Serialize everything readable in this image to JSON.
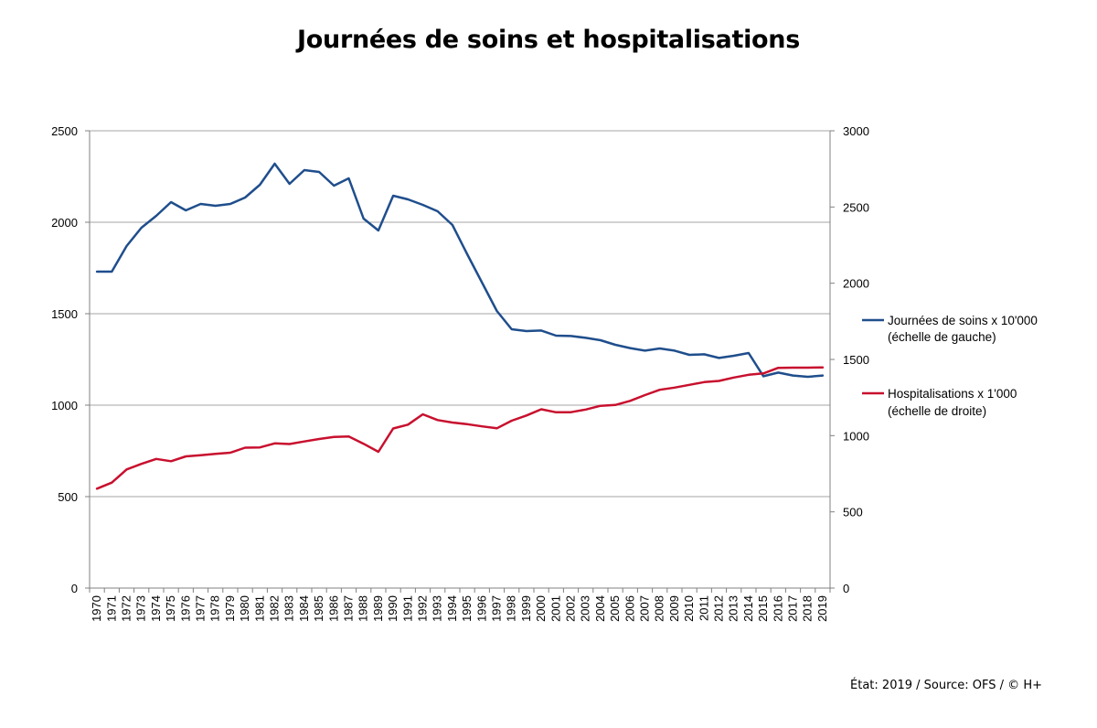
{
  "page": {
    "title": "Journées de soins et hospitalisations",
    "footer": "État: 2019 / Source: OFS / © H+"
  },
  "colors": {
    "series_blue": "#1f4e8c",
    "series_red": "#c8102e",
    "grid": "#a6a6a6",
    "axis": "#808080"
  },
  "chart_data": {
    "type": "line",
    "title": "Journées de soins et hospitalisations",
    "x": [
      "1970",
      "1971",
      "1972",
      "1973",
      "1974",
      "1975",
      "1976",
      "1977",
      "1978",
      "1979",
      "1980",
      "1981",
      "1982",
      "1983",
      "1984",
      "1985",
      "1986",
      "1987",
      "1988",
      "1989",
      "1990",
      "1991",
      "1992",
      "1993",
      "1994",
      "1995",
      "1996",
      "1997",
      "1998",
      "1999",
      "2000",
      "2001",
      "2002",
      "2003",
      "2004",
      "2005",
      "2006",
      "2007",
      "2008",
      "2009",
      "2010",
      "2011",
      "2012",
      "2013",
      "2014",
      "2015",
      "2016",
      "2017",
      "2018",
      "2019"
    ],
    "y_left": {
      "min": 0,
      "max": 2500,
      "ticks": [
        0,
        500,
        1000,
        1500,
        2000,
        2500
      ]
    },
    "y_right": {
      "min": 0,
      "max": 3000,
      "ticks": [
        0,
        500,
        1000,
        1500,
        2000,
        2500,
        3000
      ]
    },
    "grid": true,
    "legend_position": "right",
    "series": [
      {
        "name": "Journées de soins x 10'000",
        "name_line2": "(échelle de gauche)",
        "axis": "left",
        "color": "#1f4e8c",
        "values": [
          1730,
          1730,
          1870,
          1970,
          2035,
          2110,
          2065,
          2100,
          2090,
          2100,
          2135,
          2205,
          2320,
          2210,
          2285,
          2275,
          2200,
          2240,
          2020,
          1955,
          2145,
          2125,
          2095,
          2060,
          1985,
          1825,
          1670,
          1515,
          1415,
          1405,
          1408,
          1380,
          1378,
          1368,
          1355,
          1330,
          1312,
          1298,
          1310,
          1298,
          1275,
          1278,
          1258,
          1270,
          1285,
          1158,
          1178,
          1162,
          1155,
          1162
        ]
      },
      {
        "name": "Hospitalisations x 1'000",
        "name_line2": "(échelle de droite)",
        "axis": "right",
        "color": "#c8102e",
        "values": [
          652,
          692,
          778,
          815,
          847,
          832,
          864,
          872,
          880,
          888,
          921,
          923,
          949,
          945,
          962,
          978,
          992,
          995,
          947,
          894,
          1047,
          1072,
          1140,
          1102,
          1086,
          1075,
          1061,
          1048,
          1098,
          1132,
          1173,
          1153,
          1154,
          1171,
          1196,
          1201,
          1228,
          1266,
          1301,
          1315,
          1333,
          1351,
          1359,
          1381,
          1399,
          1408,
          1445,
          1446,
          1446,
          1447
        ]
      }
    ]
  }
}
